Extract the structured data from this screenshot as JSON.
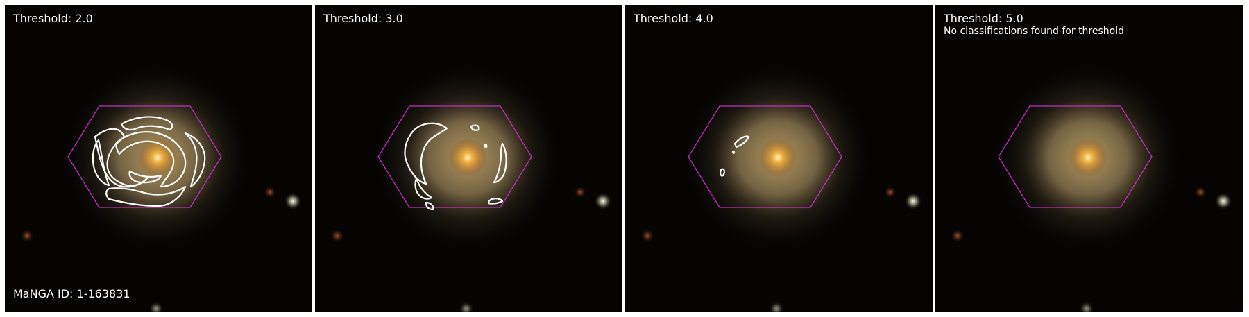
{
  "panels": [
    {
      "title": "Threshold: 2.0",
      "note": ""
    },
    {
      "title": "Threshold: 3.0",
      "note": ""
    },
    {
      "title": "Threshold: 4.0",
      "note": ""
    },
    {
      "title": "Threshold: 5.0",
      "note": "No classifications found for threshold"
    }
  ],
  "galaxy_id_label": "MaNGA ID: 1-163831",
  "colors": {
    "background": "#050403",
    "hexagon": "#c030c0",
    "contour": "#ffffff",
    "galaxy_core": "#f0a030"
  }
}
